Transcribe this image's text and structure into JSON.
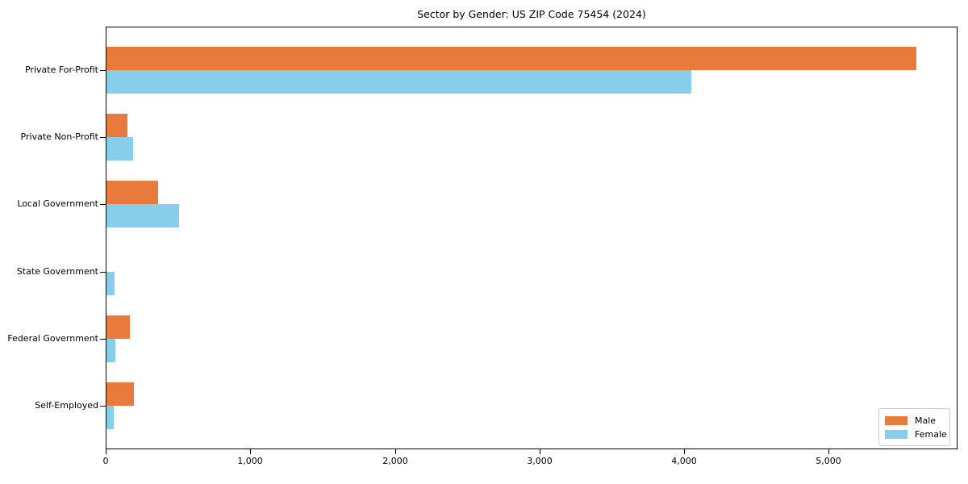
{
  "chart_data": {
    "type": "bar",
    "orientation": "horizontal",
    "title": "Sector by Gender: US ZIP Code 75454 (2024)",
    "xlabel": "",
    "ylabel": "",
    "categories": [
      "Private For-Profit",
      "Private Non-Profit",
      "Local Government",
      "State Government",
      "Federal Government",
      "Self-Employed"
    ],
    "series": [
      {
        "name": "Male",
        "color": "#e87a3c",
        "values": [
          5610,
          145,
          355,
          0,
          160,
          190
        ]
      },
      {
        "name": "Female",
        "color": "#87ceeb",
        "values": [
          4050,
          185,
          505,
          55,
          60,
          50
        ]
      }
    ],
    "x_ticks": {
      "values": [
        0,
        1000,
        2000,
        3000,
        4000,
        5000
      ],
      "labels": [
        "0",
        "1,000",
        "2,000",
        "3,000",
        "4,000",
        "5,000"
      ]
    },
    "xlim": [
      0,
      5890
    ],
    "grid": false,
    "legend_position": "lower right",
    "frame": "all-spines"
  }
}
